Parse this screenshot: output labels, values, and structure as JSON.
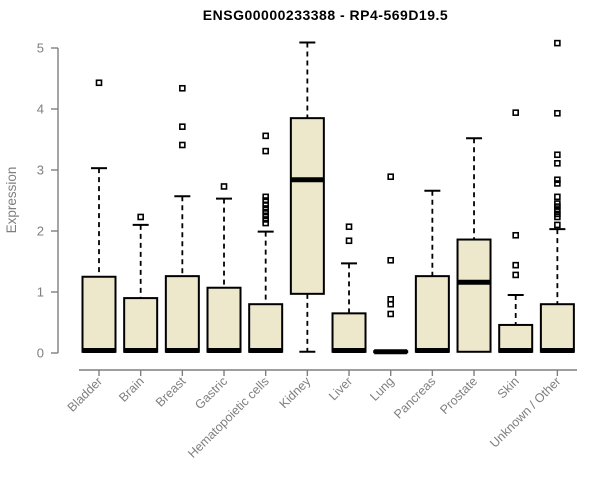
{
  "chart": {
    "title": "ENSG00000233388 - RP4-569D19.5",
    "ylabel": "Expression"
  },
  "chart_data": {
    "type": "boxplot",
    "title": "ENSG00000233388 - RP4-569D19.5",
    "xlabel": "",
    "ylabel": "Expression",
    "ylim": [
      0,
      5
    ],
    "yticks": [
      0,
      1,
      2,
      3,
      4,
      5
    ],
    "grid": false,
    "legend": "none",
    "categories": [
      "Bladder",
      "Brain",
      "Breast",
      "Gastric",
      "Hematopoietic cells",
      "Kidney",
      "Liver",
      "Lung",
      "Pancreas",
      "Prostate",
      "Skin",
      "Unknown / Other"
    ],
    "series": [
      {
        "category": "Bladder",
        "whisker_low": 0.02,
        "q1": 0.02,
        "median": 0.04,
        "q3": 1.25,
        "whisker_high": 3.03,
        "outliers": [
          4.43
        ]
      },
      {
        "category": "Brain",
        "whisker_low": 0.02,
        "q1": 0.02,
        "median": 0.04,
        "q3": 0.9,
        "whisker_high": 2.1,
        "outliers": [
          2.23
        ]
      },
      {
        "category": "Breast",
        "whisker_low": 0.02,
        "q1": 0.02,
        "median": 0.04,
        "q3": 1.26,
        "whisker_high": 2.57,
        "outliers": [
          3.41,
          3.71,
          4.34
        ]
      },
      {
        "category": "Gastric",
        "whisker_low": 0.02,
        "q1": 0.02,
        "median": 0.04,
        "q3": 1.07,
        "whisker_high": 2.53,
        "outliers": [
          2.73
        ]
      },
      {
        "category": "Hematopoietic cells",
        "whisker_low": 0.02,
        "q1": 0.02,
        "median": 0.04,
        "q3": 0.8,
        "whisker_high": 1.99,
        "outliers": [
          2.13,
          2.19,
          2.25,
          2.31,
          2.37,
          2.43,
          2.5,
          2.56,
          3.31,
          3.56
        ]
      },
      {
        "category": "Kidney",
        "whisker_low": 0.02,
        "q1": 0.97,
        "median": 2.84,
        "q3": 3.85,
        "whisker_high": 5.09,
        "outliers": []
      },
      {
        "category": "Liver",
        "whisker_low": 0.02,
        "q1": 0.02,
        "median": 0.04,
        "q3": 0.65,
        "whisker_high": 1.47,
        "outliers": [
          1.84,
          2.07
        ]
      },
      {
        "category": "Lung",
        "whisker_low": 0.02,
        "q1": 0.02,
        "median": 0.02,
        "q3": 0.03,
        "whisker_high": 0.03,
        "outliers": [
          0.64,
          0.8,
          0.88,
          1.52,
          2.89
        ]
      },
      {
        "category": "Pancreas",
        "whisker_low": 0.02,
        "q1": 0.02,
        "median": 0.04,
        "q3": 1.26,
        "whisker_high": 2.66,
        "outliers": []
      },
      {
        "category": "Prostate",
        "whisker_low": 0.02,
        "q1": 0.02,
        "median": 1.16,
        "q3": 1.86,
        "whisker_high": 3.52,
        "outliers": []
      },
      {
        "category": "Skin",
        "whisker_low": 0.02,
        "q1": 0.02,
        "median": 0.04,
        "q3": 0.46,
        "whisker_high": 0.95,
        "outliers": [
          1.28,
          1.44,
          1.93,
          3.94
        ]
      },
      {
        "category": "Unknown / Other",
        "whisker_low": 0.02,
        "q1": 0.02,
        "median": 0.04,
        "q3": 0.8,
        "whisker_high": 2.03,
        "outliers": [
          2.1,
          2.23,
          2.28,
          2.34,
          2.4,
          2.45,
          2.56,
          2.78,
          2.84,
          3.11,
          3.25,
          3.93,
          5.08
        ]
      }
    ],
    "colors": {
      "box_fill": "#EDE7CC",
      "box_border": "#000000",
      "median": "#000000",
      "whisker": "#000000",
      "outlier": "#000000",
      "axis": "#7F7F7F",
      "tick_label": "#7F7F7F",
      "axis_label": "#7F7F7F",
      "title": "#000000",
      "background": "#FFFFFF"
    }
  }
}
